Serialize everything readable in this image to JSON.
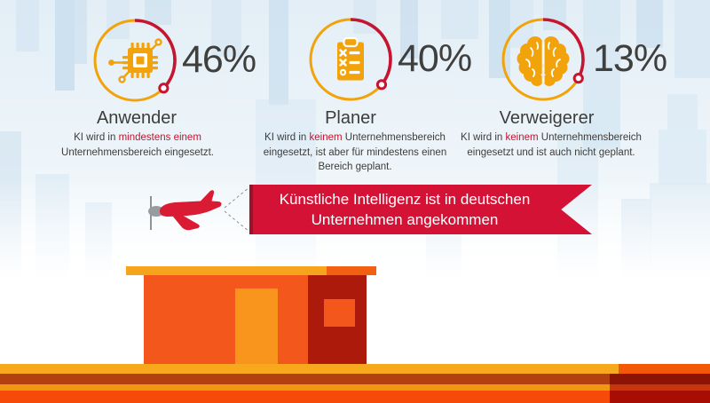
{
  "banner": {
    "line1": "Künstliche Intelligenz ist in deutschen",
    "line2": "Unternehmen angekommen"
  },
  "stats": [
    {
      "label": "Anwender",
      "percent": "46%",
      "value": 46,
      "arc_deg": 134,
      "icon": "chip-icon",
      "desc_pre": "KI wird in ",
      "desc_highlight": "mindestens einem",
      "desc_post": " Unternehmensbereich eingesetzt."
    },
    {
      "label": "Planer",
      "percent": "40%",
      "value": 40,
      "arc_deg": 129,
      "icon": "clipboard-checklist-icon",
      "desc_pre": "KI wird in ",
      "desc_highlight": "keinem",
      "desc_post": " Unternehmensbereich eingesetzt, ist aber für mindestens einen Bereich geplant."
    },
    {
      "label": "Verweigerer",
      "percent": "13%",
      "value": 13,
      "arc_deg": 118,
      "icon": "brain-icon",
      "desc_pre": "KI wird in ",
      "desc_highlight": "keinem",
      "desc_post": " Unternehmensbereich eingesetzt und ist auch nicht geplant."
    }
  ],
  "chart_data": {
    "type": "pie",
    "subtype": "radial-progress-gauges",
    "unit": "%",
    "categories": [
      "Anwender",
      "Planer",
      "Verweigerer"
    ],
    "values": [
      46,
      40,
      13
    ],
    "title": "Künstliche Intelligenz ist in deutschen Unternehmen angekommen",
    "annotations": [
      "Anwender: KI wird in mindestens einem Unternehmensbereich eingesetzt.",
      "Planer: KI wird in keinem Unternehmensbereich eingesetzt, ist aber für mindestens einen Bereich geplant.",
      "Verweigerer: KI wird in keinem Unternehmensbereich eingesetzt und ist auch nicht geplant."
    ],
    "legend_position": "none"
  },
  "colors": {
    "gauge_amber": "#f2a30b",
    "gauge_arc_red": "#c61531",
    "text_dark": "#3c3c3b",
    "highlight_red": "#c3142d",
    "banner_red": "#d41235",
    "plane_red": "#da1b34",
    "sky_building_light": "#d7e7f3",
    "sky_building_deep": "#c9deee",
    "building_roof": "#f6a41b",
    "building_roof_right": "#f26111",
    "building_facade": "#f3571b",
    "building_dark_section": "#ab1a0a",
    "building_door": "#f9951c",
    "street_band_1": "#f8a81c",
    "street_band_2": "#b4400f",
    "street_band_3": "#ee9a10",
    "street_band_4": "#f54a08"
  },
  "illustrations": {
    "plane": "red-propeller-plane",
    "building": "orange-rooftop-building",
    "background": "city-skyline"
  }
}
